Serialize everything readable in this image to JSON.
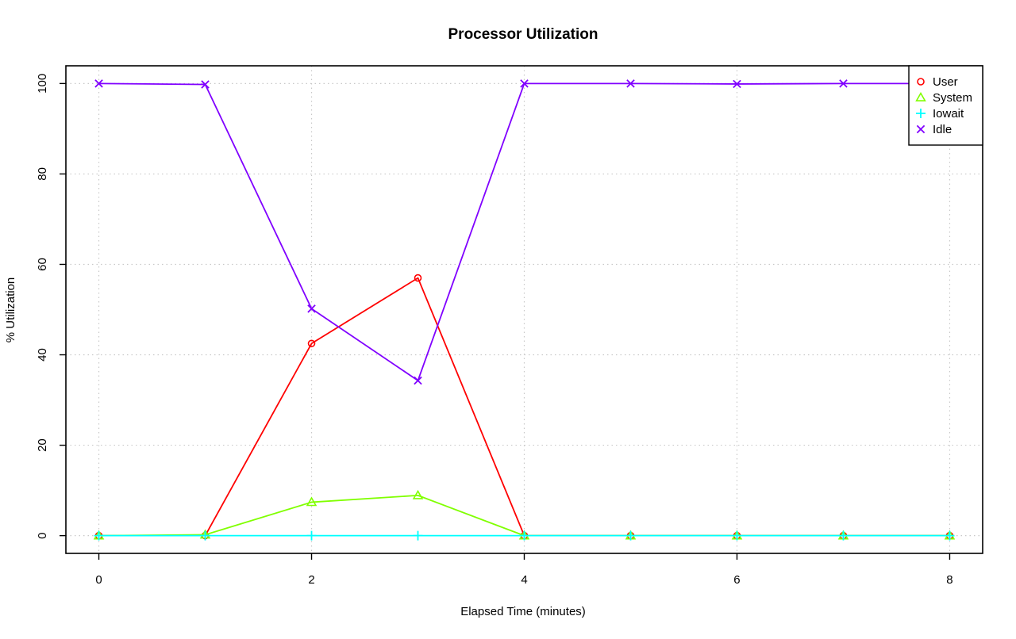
{
  "chart_data": {
    "type": "line",
    "title": "Processor Utilization",
    "xlabel": "Elapsed Time (minutes)",
    "ylabel": "% Utilization",
    "xlim": [
      -0.31,
      8.31
    ],
    "ylim": [
      -3.92,
      103.92
    ],
    "x_ticks": [
      0,
      2,
      4,
      6,
      8
    ],
    "y_ticks": [
      0,
      20,
      40,
      60,
      80,
      100
    ],
    "grid": true,
    "legend_position": "top-right",
    "x": [
      0,
      1,
      2,
      3,
      4,
      5,
      6,
      7,
      8
    ],
    "series": [
      {
        "name": "User",
        "color": "#ff0000",
        "marker": "circle",
        "values": [
          0,
          0,
          42.5,
          57,
          0,
          0,
          0,
          0,
          0
        ]
      },
      {
        "name": "System",
        "color": "#80ff00",
        "marker": "triangle",
        "values": [
          0,
          0.2,
          7.4,
          8.9,
          0,
          0,
          0,
          0,
          0
        ]
      },
      {
        "name": "Iowait",
        "color": "#00ffff",
        "marker": "plus",
        "values": [
          0,
          0,
          0,
          0,
          0,
          0,
          0,
          0,
          0
        ]
      },
      {
        "name": "Idle",
        "color": "#8000ff",
        "marker": "cross",
        "values": [
          100,
          99.8,
          50.2,
          34.3,
          100,
          100,
          99.9,
          100,
          100
        ]
      }
    ]
  }
}
